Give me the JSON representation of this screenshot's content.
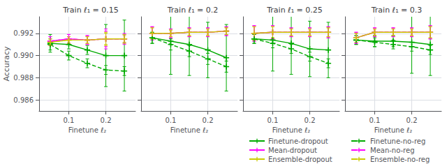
{
  "chart_data": [
    {
      "type": "line",
      "title": "Train ℓ₁ = 0.15",
      "xlabel": "Finetune ℓ₂",
      "ylabel": "Accuracy",
      "x": [
        0.05,
        0.1,
        0.15,
        0.2,
        0.25
      ],
      "xlim": [
        0.02,
        0.28
      ],
      "xticks": [
        0.1,
        0.2
      ],
      "ylim": [
        0.985,
        0.9935
      ],
      "yticks": [
        0.986,
        0.988,
        {
          "value": 0.99,
          "label": "0.990"
        },
        0.992
      ],
      "grid": true,
      "series": [
        {
          "name": "Finetune-dropout",
          "color": "#00aa00",
          "line_style": "solid",
          "marker": "+",
          "values": [
            0.9911,
            0.991,
            0.9905,
            0.99,
            0.99
          ],
          "errors": [
            0.0008,
            0.0004,
            0.0004,
            0.0028,
            0.0032
          ]
        },
        {
          "name": "Mean-dropout",
          "color": "#ff00ff",
          "line_style": "solid",
          "marker": "+",
          "values": [
            0.9913,
            0.9915,
            0.9914,
            0.9915,
            0.9915
          ],
          "errors": [
            0.0004,
            0.0004,
            0.0004,
            0.0009,
            0.0005
          ]
        },
        {
          "name": "Ensemble-dropout",
          "color": "#cccc00",
          "line_style": "solid",
          "marker": "+",
          "values": [
            0.9912,
            0.9914,
            0.9914,
            0.9915,
            0.9915
          ],
          "errors": [
            0.0003,
            0.0003,
            0.0003,
            0.0006,
            0.0004
          ]
        },
        {
          "name": "Finetune-no-reg",
          "color": "#00aa00",
          "line_style": "dashed",
          "marker": "+",
          "values": [
            0.991,
            0.99,
            0.9893,
            0.9887,
            0.9886
          ],
          "errors": [
            0.0005,
            0.0004,
            0.0004,
            0.0004,
            0.0004
          ]
        },
        {
          "name": "Mean-no-reg",
          "color": "#ff00ff",
          "line_style": "dashed",
          "marker": "+",
          "values": [
            0.9913,
            0.9915,
            0.9914,
            0.9915,
            0.9915
          ],
          "errors": [
            0.0004,
            0.0004,
            0.0004,
            0.0007,
            0.0004
          ]
        },
        {
          "name": "Ensemble-no-reg",
          "color": "#cccc00",
          "line_style": "dashed",
          "marker": "+",
          "values": [
            0.9912,
            0.9914,
            0.9914,
            0.9915,
            0.9915
          ],
          "errors": [
            0.0003,
            0.0003,
            0.0003,
            0.0005,
            0.0003
          ]
        }
      ]
    },
    {
      "type": "line",
      "title": "Train ℓ₁ = 0.2",
      "xlabel": "Finetune ℓ₂",
      "x": [
        0.05,
        0.1,
        0.15,
        0.2,
        0.25
      ],
      "xlim": [
        0.02,
        0.28
      ],
      "xticks": [
        0.1,
        0.2
      ],
      "ylim": [
        0.985,
        0.9935
      ],
      "yticks": [
        0.986,
        0.988,
        {
          "value": 0.99,
          "label": "0.990"
        },
        0.992
      ],
      "grid": true,
      "tick_labels": "x",
      "series": [
        {
          "name": "Finetune-dropout",
          "color": "#00aa00",
          "line_style": "solid",
          "marker": "+",
          "values": [
            0.9916,
            0.9913,
            0.991,
            0.9905,
            0.9898
          ],
          "errors": [
            0.0005,
            0.003,
            0.0028,
            0.0025,
            0.003
          ]
        },
        {
          "name": "Mean-dropout",
          "color": "#ff00ff",
          "line_style": "solid",
          "marker": "+",
          "values": [
            0.992,
            0.992,
            0.9921,
            0.9921,
            0.9922
          ],
          "errors": [
            0.0006,
            0.0004,
            0.0004,
            0.0004,
            0.0004
          ]
        },
        {
          "name": "Ensemble-dropout",
          "color": "#cccc00",
          "line_style": "solid",
          "marker": "+",
          "values": [
            0.992,
            0.992,
            0.9921,
            0.9921,
            0.9922
          ],
          "errors": [
            0.0005,
            0.0003,
            0.0003,
            0.0003,
            0.0003
          ]
        },
        {
          "name": "Finetune-no-reg",
          "color": "#00aa00",
          "line_style": "dashed",
          "marker": "+",
          "values": [
            0.9916,
            0.991,
            0.9904,
            0.9897,
            0.989
          ],
          "errors": [
            0.0005,
            0.0005,
            0.0005,
            0.0005,
            0.0005
          ]
        },
        {
          "name": "Mean-no-reg",
          "color": "#ff00ff",
          "line_style": "dashed",
          "marker": "+",
          "values": [
            0.992,
            0.992,
            0.9921,
            0.9921,
            0.9922
          ],
          "errors": [
            0.0006,
            0.0004,
            0.0004,
            0.0004,
            0.0004
          ]
        },
        {
          "name": "Ensemble-no-reg",
          "color": "#cccc00",
          "line_style": "dashed",
          "marker": "+",
          "values": [
            0.992,
            0.992,
            0.9921,
            0.9921,
            0.9922
          ],
          "errors": [
            0.0005,
            0.0003,
            0.0003,
            0.0003,
            0.0003
          ]
        }
      ]
    },
    {
      "type": "line",
      "title": "Train ℓ₁ = 0.25",
      "xlabel": "Finetune ℓ₂",
      "x": [
        0.05,
        0.1,
        0.15,
        0.2,
        0.25
      ],
      "xlim": [
        0.02,
        0.28
      ],
      "xticks": [
        0.1,
        0.2
      ],
      "ylim": [
        0.985,
        0.9935
      ],
      "yticks": [
        0.986,
        0.988,
        {
          "value": 0.99,
          "label": "0.990"
        },
        0.992
      ],
      "grid": true,
      "tick_labels": "x",
      "legend": "bottom",
      "series": [
        {
          "name": "Finetune-dropout",
          "color": "#00aa00",
          "line_style": "solid",
          "marker": "+",
          "values": [
            0.9915,
            0.9914,
            0.9911,
            0.9906,
            0.9905
          ],
          "errors": [
            0.0004,
            0.0028,
            0.0028,
            0.0025,
            0.0025
          ]
        },
        {
          "name": "Mean-dropout",
          "color": "#ff00ff",
          "line_style": "solid",
          "marker": "+",
          "values": [
            0.992,
            0.9921,
            0.9921,
            0.9921,
            0.9921
          ],
          "errors": [
            0.0007,
            0.0006,
            0.0004,
            0.0004,
            0.0005
          ]
        },
        {
          "name": "Ensemble-dropout",
          "color": "#cccc00",
          "line_style": "solid",
          "marker": "+",
          "values": [
            0.992,
            0.9921,
            0.9921,
            0.9921,
            0.9921
          ],
          "errors": [
            0.0006,
            0.0005,
            0.0003,
            0.0003,
            0.0004
          ]
        },
        {
          "name": "Finetune-no-reg",
          "color": "#00aa00",
          "line_style": "dashed",
          "marker": "+",
          "values": [
            0.9915,
            0.9911,
            0.9906,
            0.9899,
            0.9893
          ],
          "errors": [
            0.0004,
            0.0004,
            0.0004,
            0.0004,
            0.0004
          ]
        },
        {
          "name": "Mean-no-reg",
          "color": "#ff00ff",
          "line_style": "dashed",
          "marker": "+",
          "values": [
            0.992,
            0.9921,
            0.9921,
            0.9921,
            0.9921
          ],
          "errors": [
            0.0007,
            0.0006,
            0.0004,
            0.0004,
            0.0005
          ]
        },
        {
          "name": "Ensemble-no-reg",
          "color": "#cccc00",
          "line_style": "dashed",
          "marker": "+",
          "values": [
            0.992,
            0.9921,
            0.9921,
            0.9921,
            0.9921
          ],
          "errors": [
            0.0006,
            0.0005,
            0.0003,
            0.0003,
            0.0004
          ]
        }
      ]
    },
    {
      "type": "line",
      "title": "Train ℓ₁ = 0.3",
      "xlabel": "Finetune ℓ₂",
      "x": [
        0.05,
        0.1,
        0.15,
        0.2,
        0.25
      ],
      "xlim": [
        0.02,
        0.28
      ],
      "xticks": [
        0.1,
        0.2
      ],
      "ylim": [
        0.985,
        0.9935
      ],
      "yticks": [
        0.986,
        0.988,
        {
          "value": 0.99,
          "label": "0.990"
        },
        0.992
      ],
      "grid": true,
      "tick_labels": "x",
      "legend": "bottom",
      "series": [
        {
          "name": "Finetune-dropout",
          "color": "#00aa00",
          "line_style": "solid",
          "marker": "+",
          "values": [
            0.9914,
            0.9913,
            0.9913,
            0.9912,
            0.991
          ],
          "errors": [
            0.0004,
            0.0005,
            0.0005,
            0.0028,
            0.0028
          ]
        },
        {
          "name": "Mean-dropout",
          "color": "#ff00ff",
          "line_style": "solid",
          "marker": "+",
          "values": [
            0.9916,
            0.9921,
            0.9921,
            0.9921,
            0.9921
          ],
          "errors": [
            0.0005,
            0.0004,
            0.0004,
            0.0004,
            0.0006
          ]
        },
        {
          "name": "Ensemble-dropout",
          "color": "#cccc00",
          "line_style": "solid",
          "marker": "+",
          "values": [
            0.9916,
            0.9921,
            0.9921,
            0.9921,
            0.9921
          ],
          "errors": [
            0.0004,
            0.0003,
            0.0003,
            0.0003,
            0.0005
          ]
        },
        {
          "name": "Finetune-no-reg",
          "color": "#00aa00",
          "line_style": "dashed",
          "marker": "+",
          "values": [
            0.9914,
            0.9912,
            0.991,
            0.9908,
            0.9905
          ],
          "errors": [
            0.0004,
            0.0004,
            0.0004,
            0.0004,
            0.0004
          ]
        },
        {
          "name": "Mean-no-reg",
          "color": "#ff00ff",
          "line_style": "dashed",
          "marker": "+",
          "values": [
            0.9916,
            0.9921,
            0.9921,
            0.9921,
            0.9921
          ],
          "errors": [
            0.0005,
            0.0004,
            0.0004,
            0.0004,
            0.0006
          ]
        },
        {
          "name": "Ensemble-no-reg",
          "color": "#cccc00",
          "line_style": "dashed",
          "marker": "+",
          "values": [
            0.9916,
            0.9921,
            0.9921,
            0.9921,
            0.9921
          ],
          "errors": [
            0.0004,
            0.0003,
            0.0003,
            0.0003,
            0.0005
          ]
        }
      ]
    }
  ]
}
